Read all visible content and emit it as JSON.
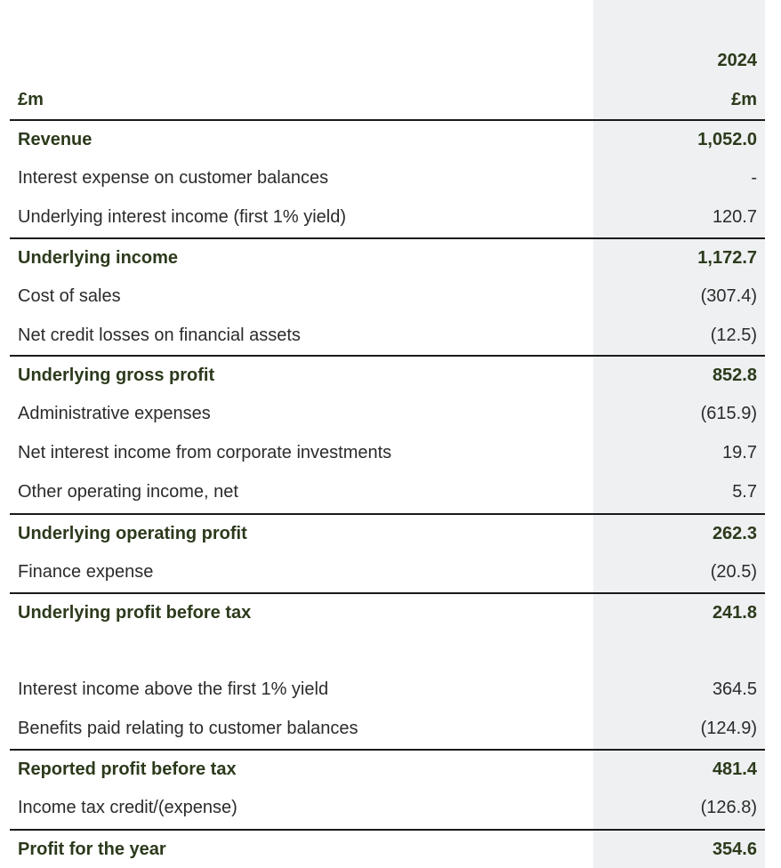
{
  "header": {
    "year": "2024",
    "label_unit": "£m",
    "value_unit": "£m"
  },
  "rows": [
    {
      "label": "Revenue",
      "value": "1,052.0"
    },
    {
      "label": "Interest expense on customer balances",
      "value": "-"
    },
    {
      "label": "Underlying interest income (first 1% yield)",
      "value": "120.7"
    },
    {
      "label": "Underlying income",
      "value": "1,172.7"
    },
    {
      "label": "Cost of sales",
      "value": "(307.4)"
    },
    {
      "label": "Net credit losses on financial assets",
      "value": "(12.5)"
    },
    {
      "label": "Underlying gross profit",
      "value": "852.8"
    },
    {
      "label": "Administrative expenses",
      "value": "(615.9)"
    },
    {
      "label": "Net interest income from corporate investments",
      "value": "19.7"
    },
    {
      "label": "Other operating income, net",
      "value": "5.7"
    },
    {
      "label": "Underlying operating profit",
      "value": "262.3"
    },
    {
      "label": "Finance expense",
      "value": "(20.5)"
    },
    {
      "label": "Underlying profit before tax",
      "value": "241.8"
    },
    {
      "label": "Interest income above the first 1% yield",
      "value": "364.5"
    },
    {
      "label": "Benefits paid relating to customer balances",
      "value": "(124.9)"
    },
    {
      "label": "Reported profit before tax",
      "value": "481.4"
    },
    {
      "label": "Income tax credit/(expense)",
      "value": "(126.8)"
    },
    {
      "label": "Profit for the year",
      "value": "354.6"
    }
  ]
}
